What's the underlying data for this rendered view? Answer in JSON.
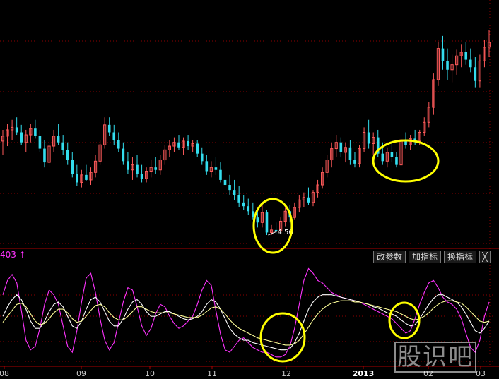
{
  "chart_data": [
    {
      "type": "candlestick",
      "annotations": [
        {
          "label": "4.56"
        }
      ],
      "colors": {
        "up": "#ff5a5a",
        "down": "#33ddee",
        "background": "#000000",
        "grid": "#8b0000"
      },
      "markers": [
        "yellow-ellipse-bottom",
        "yellow-ellipse-right"
      ],
      "candles": [
        [
          5.31,
          5.4,
          5.2,
          5.35
        ],
        [
          5.35,
          5.45,
          5.27,
          5.4
        ],
        [
          5.4,
          5.48,
          5.32,
          5.42
        ],
        [
          5.42,
          5.5,
          5.36,
          5.38
        ],
        [
          5.38,
          5.44,
          5.28,
          5.3
        ],
        [
          5.3,
          5.4,
          5.22,
          5.36
        ],
        [
          5.36,
          5.45,
          5.3,
          5.41
        ],
        [
          5.41,
          5.48,
          5.33,
          5.35
        ],
        [
          5.35,
          5.4,
          5.22,
          5.25
        ],
        [
          5.25,
          5.32,
          5.1,
          5.14
        ],
        [
          5.14,
          5.3,
          5.1,
          5.27
        ],
        [
          5.27,
          5.4,
          5.22,
          5.35
        ],
        [
          5.35,
          5.45,
          5.28,
          5.3
        ],
        [
          5.3,
          5.36,
          5.2,
          5.24
        ],
        [
          5.24,
          5.3,
          5.12,
          5.16
        ],
        [
          5.16,
          5.22,
          5.02,
          5.05
        ],
        [
          5.05,
          5.12,
          4.95,
          4.98
        ],
        [
          4.98,
          5.08,
          4.94,
          5.04
        ],
        [
          5.04,
          5.12,
          4.99,
          5.0
        ],
        [
          5.0,
          5.1,
          4.96,
          5.06
        ],
        [
          5.06,
          5.2,
          5.02,
          5.15
        ],
        [
          5.15,
          5.32,
          5.12,
          5.28
        ],
        [
          5.28,
          5.5,
          5.25,
          5.44
        ],
        [
          5.44,
          5.5,
          5.35,
          5.38
        ],
        [
          5.38,
          5.44,
          5.28,
          5.32
        ],
        [
          5.32,
          5.38,
          5.22,
          5.25
        ],
        [
          5.25,
          5.3,
          5.12,
          5.15
        ],
        [
          5.15,
          5.22,
          5.05,
          5.08
        ],
        [
          5.08,
          5.18,
          5.0,
          5.12
        ],
        [
          5.12,
          5.2,
          5.02,
          5.05
        ],
        [
          5.05,
          5.12,
          4.98,
          5.01
        ],
        [
          5.01,
          5.1,
          4.98,
          5.07
        ],
        [
          5.07,
          5.16,
          5.02,
          5.1
        ],
        [
          5.1,
          5.18,
          5.05,
          5.08
        ],
        [
          5.08,
          5.2,
          5.04,
          5.16
        ],
        [
          5.16,
          5.28,
          5.12,
          5.24
        ],
        [
          5.24,
          5.32,
          5.18,
          5.27
        ],
        [
          5.27,
          5.34,
          5.22,
          5.3
        ],
        [
          5.3,
          5.36,
          5.24,
          5.26
        ],
        [
          5.26,
          5.34,
          5.2,
          5.31
        ],
        [
          5.31,
          5.36,
          5.24,
          5.27
        ],
        [
          5.27,
          5.32,
          5.22,
          5.29
        ],
        [
          5.29,
          5.32,
          5.18,
          5.21
        ],
        [
          5.21,
          5.26,
          5.12,
          5.15
        ],
        [
          5.15,
          5.2,
          5.04,
          5.07
        ],
        [
          5.07,
          5.15,
          5.02,
          5.1
        ],
        [
          5.1,
          5.18,
          5.04,
          5.08
        ],
        [
          5.08,
          5.14,
          4.98,
          5.0
        ],
        [
          5.0,
          5.08,
          4.93,
          4.96
        ],
        [
          4.96,
          5.04,
          4.88,
          4.92
        ],
        [
          4.92,
          5.0,
          4.84,
          4.88
        ],
        [
          4.88,
          4.95,
          4.78,
          4.82
        ],
        [
          4.82,
          4.88,
          4.76,
          4.79
        ],
        [
          4.79,
          4.85,
          4.72,
          4.75
        ],
        [
          4.75,
          4.82,
          4.68,
          4.7
        ],
        [
          4.7,
          4.76,
          4.62,
          4.66
        ],
        [
          4.66,
          4.8,
          4.62,
          4.74
        ],
        [
          4.74,
          4.76,
          4.56,
          4.58
        ],
        [
          4.58,
          4.64,
          4.56,
          4.6
        ],
        [
          4.6,
          4.66,
          4.57,
          4.59
        ],
        [
          4.59,
          4.7,
          4.57,
          4.67
        ],
        [
          4.67,
          4.8,
          4.63,
          4.75
        ],
        [
          4.75,
          4.8,
          4.66,
          4.7
        ],
        [
          4.7,
          4.82,
          4.68,
          4.78
        ],
        [
          4.78,
          4.88,
          4.74,
          4.84
        ],
        [
          4.84,
          4.9,
          4.78,
          4.86
        ],
        [
          4.86,
          4.94,
          4.8,
          4.82
        ],
        [
          4.82,
          4.92,
          4.79,
          4.9
        ],
        [
          4.9,
          5.0,
          4.86,
          4.96
        ],
        [
          4.96,
          5.1,
          4.93,
          5.06
        ],
        [
          5.06,
          5.2,
          5.02,
          5.16
        ],
        [
          5.16,
          5.3,
          5.1,
          5.25
        ],
        [
          5.25,
          5.36,
          5.18,
          5.3
        ],
        [
          5.3,
          5.34,
          5.18,
          5.22
        ],
        [
          5.22,
          5.3,
          5.14,
          5.26
        ],
        [
          5.26,
          5.32,
          5.12,
          5.16
        ],
        [
          5.16,
          5.22,
          5.1,
          5.13
        ],
        [
          5.13,
          5.28,
          5.1,
          5.25
        ],
        [
          5.25,
          5.42,
          5.22,
          5.38
        ],
        [
          5.38,
          5.48,
          5.25,
          5.29
        ],
        [
          5.29,
          5.38,
          5.2,
          5.34
        ],
        [
          5.34,
          5.4,
          5.18,
          5.21
        ],
        [
          5.21,
          5.3,
          5.12,
          5.15
        ],
        [
          5.15,
          5.26,
          5.1,
          5.22
        ],
        [
          5.22,
          5.3,
          5.14,
          5.18
        ],
        [
          5.18,
          5.22,
          5.1,
          5.12
        ],
        [
          5.12,
          5.35,
          5.1,
          5.32
        ],
        [
          5.32,
          5.38,
          5.25,
          5.28
        ],
        [
          5.28,
          5.36,
          5.24,
          5.33
        ],
        [
          5.33,
          5.4,
          5.28,
          5.31
        ],
        [
          5.31,
          5.4,
          5.28,
          5.38
        ],
        [
          5.38,
          5.5,
          5.35,
          5.46
        ],
        [
          5.46,
          5.62,
          5.42,
          5.58
        ],
        [
          5.58,
          5.85,
          5.52,
          5.8
        ],
        [
          5.8,
          6.1,
          5.75,
          6.05
        ],
        [
          6.05,
          6.15,
          5.88,
          5.95
        ],
        [
          5.95,
          6.05,
          5.8,
          5.88
        ],
        [
          5.88,
          6.0,
          5.78,
          5.92
        ],
        [
          5.92,
          6.04,
          5.84,
          5.99
        ],
        [
          5.99,
          6.08,
          5.9,
          6.02
        ],
        [
          6.02,
          6.1,
          5.92,
          5.96
        ],
        [
          5.96,
          6.05,
          5.86,
          5.9
        ],
        [
          5.9,
          5.98,
          5.74,
          5.79
        ],
        [
          5.79,
          6.0,
          5.74,
          5.95
        ],
        [
          5.95,
          6.12,
          5.9,
          6.06
        ],
        [
          6.06,
          6.2,
          5.98,
          6.1
        ]
      ]
    },
    {
      "type": "line",
      "title": "403 ↑",
      "x_tick_labels": [
        "08",
        "09",
        "10",
        "11",
        "12",
        "2013",
        "02",
        "03"
      ],
      "series": [
        {
          "color": "#ff33ff",
          "values": [
            68,
            80,
            85,
            78,
            55,
            30,
            22,
            25,
            40,
            60,
            72,
            68,
            60,
            42,
            25,
            20,
            38,
            62,
            82,
            86,
            70,
            48,
            30,
            22,
            28,
            45,
            62,
            74,
            72,
            58,
            42,
            34,
            40,
            52,
            60,
            58,
            50,
            44,
            40,
            42,
            46,
            50,
            60,
            72,
            80,
            76,
            55,
            35,
            22,
            20,
            25,
            30,
            32,
            28,
            24,
            22,
            20,
            20,
            18,
            16,
            16,
            18,
            25,
            40,
            60,
            80,
            90,
            86,
            80,
            78,
            74,
            70,
            68,
            66,
            65,
            64,
            63,
            62,
            60,
            58,
            56,
            54,
            52,
            50,
            48,
            44,
            40,
            36,
            38,
            48,
            60,
            70,
            78,
            80,
            74,
            66,
            62,
            60,
            56,
            48,
            36,
            24,
            20,
            30,
            50,
            62
          ]
        },
        {
          "color": "#ffffff",
          "values": [
            50,
            58,
            64,
            68,
            64,
            56,
            46,
            40,
            40,
            46,
            54,
            60,
            62,
            58,
            50,
            42,
            40,
            46,
            56,
            64,
            66,
            62,
            54,
            46,
            42,
            42,
            48,
            56,
            62,
            64,
            60,
            54,
            50,
            50,
            52,
            54,
            54,
            52,
            50,
            48,
            47,
            48,
            50,
            54,
            60,
            64,
            62,
            56,
            48,
            40,
            35,
            32,
            30,
            30,
            28,
            27,
            26,
            25,
            24,
            23,
            22,
            22,
            23,
            28,
            36,
            46,
            56,
            62,
            66,
            68,
            68,
            68,
            67,
            66,
            65,
            64,
            63,
            62,
            61,
            60,
            58,
            57,
            55,
            53,
            52,
            50,
            47,
            44,
            42,
            43,
            48,
            54,
            60,
            65,
            68,
            68,
            66,
            64,
            62,
            58,
            52,
            45,
            38,
            36,
            40,
            46
          ]
        },
        {
          "color": "#ffff99",
          "values": [
            45,
            50,
            55,
            60,
            61,
            58,
            52,
            46,
            43,
            44,
            48,
            53,
            56,
            56,
            53,
            48,
            45,
            46,
            50,
            55,
            59,
            60,
            58,
            53,
            49,
            47,
            47,
            50,
            54,
            58,
            58,
            56,
            54,
            53,
            53,
            53,
            53,
            52,
            51,
            50,
            49,
            49,
            49,
            51,
            54,
            57,
            58,
            56,
            52,
            47,
            43,
            40,
            38,
            36,
            34,
            32,
            31,
            30,
            29,
            28,
            27,
            26,
            26,
            27,
            30,
            35,
            41,
            47,
            52,
            56,
            59,
            61,
            62,
            63,
            63,
            63,
            62,
            62,
            61,
            60,
            59,
            58,
            57,
            56,
            55,
            54,
            52,
            50,
            48,
            47,
            48,
            50,
            53,
            57,
            60,
            62,
            63,
            63,
            62,
            61,
            58,
            54,
            50,
            46,
            45,
            46
          ]
        }
      ],
      "markers": [
        "yellow-circle-bottom",
        "yellow-circle-right"
      ]
    }
  ],
  "toolbar": {
    "button1": "改参数",
    "button2": "加指标",
    "button3": "换指标",
    "close": "╳"
  },
  "watermark": "股识吧"
}
